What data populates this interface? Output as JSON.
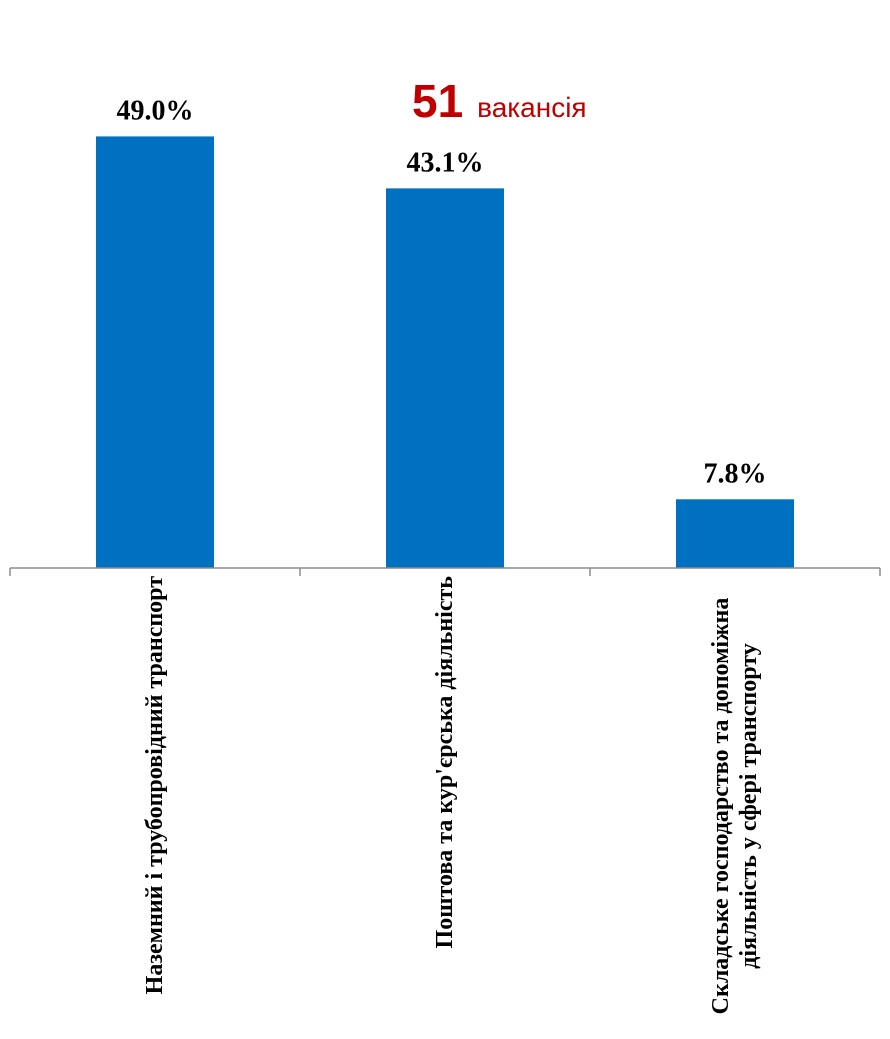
{
  "summary": {
    "value": "51",
    "label": "вакансія",
    "color": "#c00000"
  },
  "chart_data": {
    "type": "bar",
    "categories": [
      "Наземний і трубопровідний транспорт",
      "Поштова та кур'єрська діяльність",
      "Складське господарство та допоміжна діяльність у сфері транспорту"
    ],
    "values": [
      49.0,
      43.1,
      7.8
    ],
    "data_labels": [
      "49.0%",
      "43.1%",
      "7.8%"
    ],
    "unit": "%",
    "bar_color": "#0070c0",
    "ylim": [
      0,
      52
    ],
    "grid": false,
    "legend": "none"
  }
}
